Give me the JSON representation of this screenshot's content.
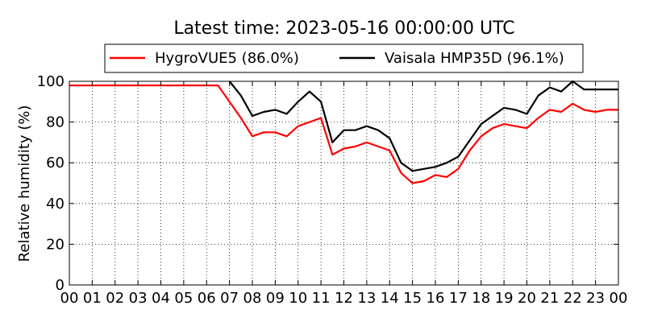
{
  "chart_data": {
    "type": "line",
    "title": "Latest time: 2023-05-16 00:00:00 UTC",
    "xlabel": "",
    "ylabel": "Relative humidity (%)",
    "xlim": [
      0,
      24
    ],
    "ylim": [
      0,
      100
    ],
    "grid": true,
    "legend_placement": "top-center",
    "x_ticks": [
      "00",
      "01",
      "02",
      "03",
      "04",
      "05",
      "06",
      "07",
      "08",
      "09",
      "10",
      "11",
      "12",
      "13",
      "14",
      "15",
      "16",
      "17",
      "18",
      "19",
      "20",
      "21",
      "22",
      "23",
      "00"
    ],
    "y_ticks": [
      0,
      20,
      40,
      60,
      80,
      100
    ],
    "x": [
      0,
      6.5,
      7,
      7.5,
      8,
      8.5,
      9,
      9.5,
      10,
      10.5,
      11,
      11.5,
      12,
      12.5,
      13,
      13.5,
      14,
      14.5,
      15,
      15.5,
      16,
      16.5,
      17,
      17.5,
      18,
      18.5,
      19,
      19.5,
      20,
      20.5,
      21,
      21.5,
      22,
      22.5,
      23,
      23.5,
      24
    ],
    "series": [
      {
        "name": "HygroVUE5 (86.0%)",
        "color": "#ff0000",
        "values": [
          98,
          98,
          90,
          82,
          73,
          75,
          75,
          73,
          78,
          80,
          82,
          64,
          67,
          68,
          70,
          68,
          66,
          55,
          50,
          51,
          54,
          53,
          57,
          66,
          73,
          77,
          79,
          78,
          77,
          82,
          86,
          85,
          89,
          86,
          85,
          86,
          86
        ]
      },
      {
        "name": "Vaisala HMP35D (96.1%)",
        "color": "#000000",
        "values": [
          null,
          null,
          100,
          93,
          83,
          85,
          86,
          84,
          90,
          95,
          90,
          70,
          76,
          76,
          78,
          76,
          72,
          60,
          56,
          57,
          58,
          60,
          63,
          71,
          79,
          83,
          87,
          86,
          84,
          93,
          97,
          95,
          100,
          96,
          96,
          96,
          96
        ]
      }
    ]
  }
}
